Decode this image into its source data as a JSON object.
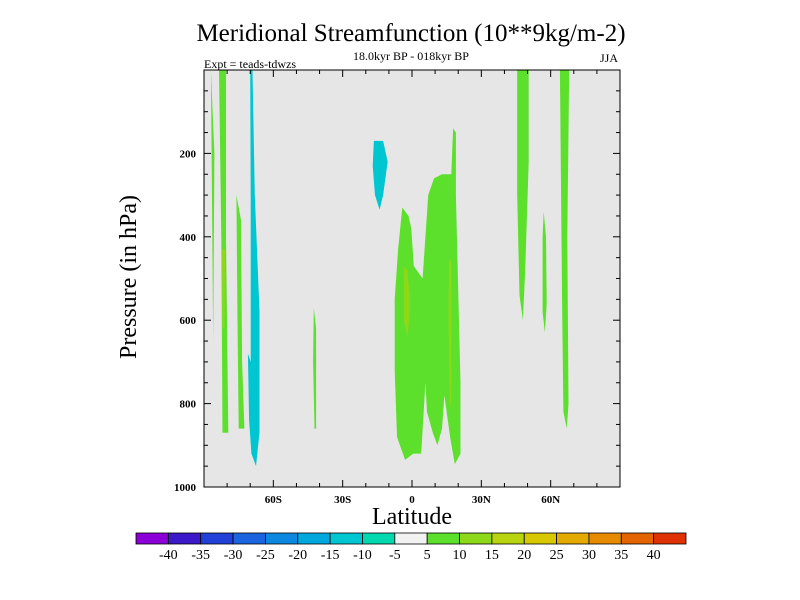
{
  "chart_data": {
    "type": "contour",
    "title": "Meridional Streamfunction (10**9kg/m-2)",
    "subtitle": "18.0kyr BP - 018kyr BP",
    "left_label": "Expt = teads-tdwzs",
    "right_label": "JJA",
    "xlabel": "Latitude",
    "ylabel": "Pressure (in hPa)",
    "xlim": [
      -90,
      90
    ],
    "ylim": [
      1000,
      0
    ],
    "x_ticks": [
      {
        "value": -60,
        "label": "60S"
      },
      {
        "value": -30,
        "label": "30S"
      },
      {
        "value": 0,
        "label": "0"
      },
      {
        "value": 30,
        "label": "30N"
      },
      {
        "value": 60,
        "label": "60N"
      }
    ],
    "y_ticks": [
      {
        "value": 200,
        "label": "200"
      },
      {
        "value": 400,
        "label": "400"
      },
      {
        "value": 600,
        "label": "600"
      },
      {
        "value": 800,
        "label": "800"
      },
      {
        "value": 1000,
        "label": "1000"
      }
    ],
    "background_color": "#e6e6e6",
    "colorbar": {
      "levels": [
        "-40",
        "-35",
        "-30",
        "-25",
        "-20",
        "-15",
        "-10",
        "-5",
        "5",
        "10",
        "15",
        "20",
        "25",
        "30",
        "35",
        "40"
      ],
      "colors": [
        "#8a00d6",
        "#3b18c8",
        "#2140d8",
        "#1a64e0",
        "#0d88e0",
        "#00a8de",
        "#00c6d2",
        "#00d8b0",
        "#f2f2f2",
        "#5ce02c",
        "#8ed81a",
        "#b8d40e",
        "#d8c800",
        "#e4aa00",
        "#e68a00",
        "#e46400",
        "#e03200"
      ]
    },
    "regions": [
      {
        "level": "10",
        "color": "#5ce02c",
        "points": [
          [
            -87,
            0
          ],
          [
            -86,
            650
          ],
          [
            -85.5,
            200
          ]
        ]
      },
      {
        "level": "10",
        "color": "#5ce02c",
        "points": [
          [
            -83.5,
            0
          ],
          [
            -80.5,
            0
          ],
          [
            -80.5,
            400
          ],
          [
            -79.5,
            870
          ],
          [
            -82,
            870
          ],
          [
            -82.5,
            400
          ]
        ]
      },
      {
        "level": "15",
        "color": "#8ed81a",
        "points": [
          [
            -82.3,
            430
          ],
          [
            -80.8,
            430
          ],
          [
            -81.2,
            620
          ],
          [
            -82,
            620
          ]
        ]
      },
      {
        "level": "-10",
        "color": "#00c6d2",
        "points": [
          [
            -70,
            0
          ],
          [
            -69,
            0
          ],
          [
            -68,
            300
          ],
          [
            -66,
            580
          ],
          [
            -66,
            870
          ],
          [
            -67.5,
            950
          ],
          [
            -69.5,
            920
          ],
          [
            -70.5,
            840
          ],
          [
            -71,
            680
          ],
          [
            -69.8,
            700
          ],
          [
            -69.8,
            300
          ]
        ]
      },
      {
        "level": "10",
        "color": "#5ce02c",
        "points": [
          [
            -76,
            300
          ],
          [
            -74,
            360
          ],
          [
            -73.5,
            700
          ],
          [
            -72.5,
            860
          ],
          [
            -75,
            860
          ],
          [
            -75.5,
            600
          ]
        ]
      },
      {
        "level": "10",
        "color": "#5ce02c",
        "points": [
          [
            -42.5,
            570
          ],
          [
            -41.5,
            620
          ],
          [
            -41.5,
            860
          ],
          [
            -42.2,
            860
          ],
          [
            -42.8,
            700
          ]
        ]
      },
      {
        "level": "-10",
        "color": "#00c6d2",
        "points": [
          [
            -16.5,
            170
          ],
          [
            -12.5,
            170
          ],
          [
            -10.5,
            220
          ],
          [
            -12.5,
            300
          ],
          [
            -14,
            335
          ],
          [
            -16,
            300
          ],
          [
            -17,
            230
          ]
        ]
      },
      {
        "level": "10",
        "color": "#5ce02c",
        "points": [
          [
            -6,
            430
          ],
          [
            -4.2,
            330
          ],
          [
            -1.5,
            350
          ],
          [
            -0.3,
            380
          ],
          [
            0.8,
            470
          ],
          [
            4.6,
            500
          ],
          [
            7,
            300
          ],
          [
            9.5,
            260
          ],
          [
            13,
            250
          ],
          [
            17,
            250
          ],
          [
            17.8,
            140
          ],
          [
            19,
            150
          ],
          [
            19,
            300
          ],
          [
            21,
            750
          ],
          [
            21,
            920
          ],
          [
            18.5,
            945
          ],
          [
            16.5,
            880
          ],
          [
            14,
            780
          ],
          [
            13,
            860
          ],
          [
            11,
            900
          ],
          [
            9,
            870
          ],
          [
            6.5,
            820
          ],
          [
            5.8,
            750
          ],
          [
            4,
            920
          ],
          [
            0.5,
            920
          ],
          [
            -3,
            935
          ],
          [
            -6.5,
            880
          ],
          [
            -7.5,
            720
          ],
          [
            -7.5,
            550
          ]
        ]
      },
      {
        "level": "15",
        "color": "#8ed81a",
        "points": [
          [
            -3.5,
            470
          ],
          [
            -2,
            480
          ],
          [
            -1,
            540
          ],
          [
            -1,
            590
          ],
          [
            -2,
            640
          ],
          [
            -3.5,
            600
          ],
          [
            -3.5,
            520
          ]
        ]
      },
      {
        "level": "15",
        "color": "#8ed81a",
        "points": [
          [
            16,
            450
          ],
          [
            17,
            460
          ],
          [
            17,
            790
          ],
          [
            16.5,
            810
          ],
          [
            15.8,
            600
          ]
        ]
      },
      {
        "level": "10",
        "color": "#5ce02c",
        "points": [
          [
            45.5,
            0
          ],
          [
            50.5,
            0
          ],
          [
            50.5,
            220
          ],
          [
            49,
            480
          ],
          [
            48,
            600
          ],
          [
            46.5,
            540
          ],
          [
            45.5,
            300
          ]
        ]
      },
      {
        "level": "10",
        "color": "#5ce02c",
        "points": [
          [
            57,
            340
          ],
          [
            58,
            400
          ],
          [
            58.3,
            560
          ],
          [
            57.5,
            630
          ],
          [
            56.5,
            580
          ],
          [
            56.5,
            400
          ]
        ]
      },
      {
        "level": "10",
        "color": "#5ce02c",
        "points": [
          [
            64,
            0
          ],
          [
            68,
            0
          ],
          [
            67.2,
            400
          ],
          [
            67.7,
            800
          ],
          [
            67,
            860
          ],
          [
            65.5,
            820
          ],
          [
            65,
            580
          ],
          [
            64.5,
            300
          ]
        ]
      }
    ]
  }
}
